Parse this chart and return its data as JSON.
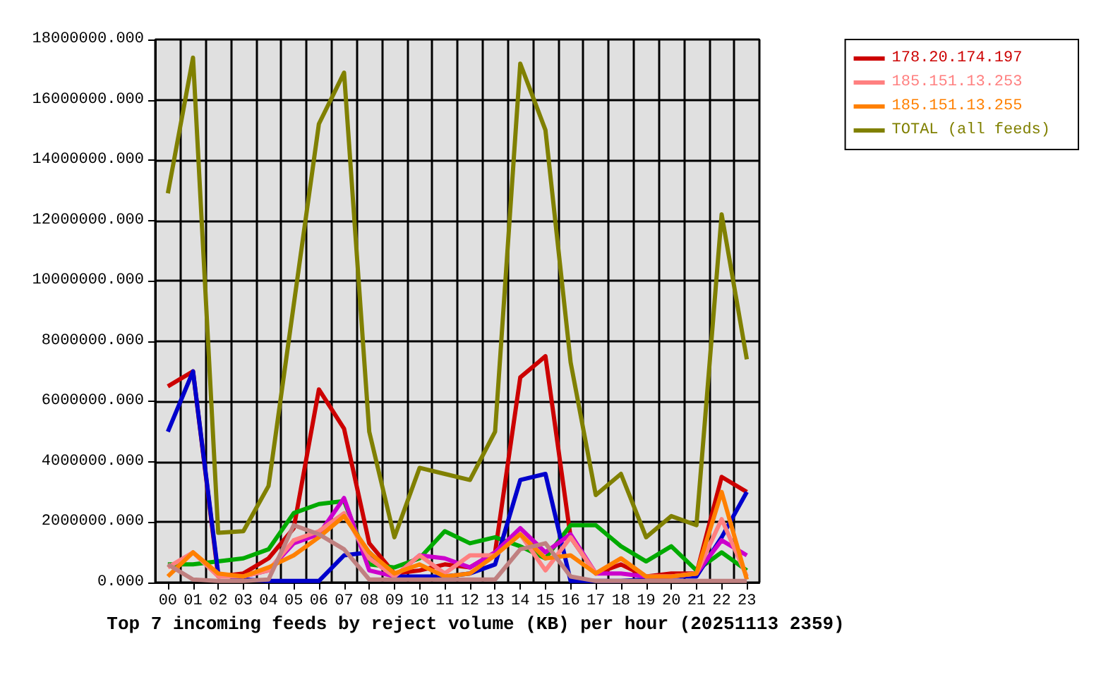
{
  "chart_data": {
    "type": "line",
    "title": "Top 7 incoming feeds by reject volume (KB) per hour (20251113 2359)",
    "categories": [
      "00",
      "01",
      "02",
      "03",
      "04",
      "05",
      "06",
      "07",
      "08",
      "09",
      "10",
      "11",
      "12",
      "13",
      "14",
      "15",
      "16",
      "17",
      "18",
      "19",
      "20",
      "21",
      "22",
      "23"
    ],
    "series": [
      {
        "name": "178.20.174.197",
        "color": "#cc0000",
        "values": [
          6500000,
          7000000,
          200000,
          300000,
          800000,
          1800000,
          6400000,
          5100000,
          1300000,
          300000,
          400000,
          600000,
          500000,
          1000000,
          6800000,
          7500000,
          1500000,
          300000,
          600000,
          200000,
          300000,
          300000,
          3500000,
          3000000
        ]
      },
      {
        "color": "#00aa00",
        "values": [
          600000,
          600000,
          700000,
          800000,
          1100000,
          2300000,
          2600000,
          2700000,
          600000,
          500000,
          800000,
          1700000,
          1300000,
          1500000,
          1200000,
          800000,
          1900000,
          1900000,
          1200000,
          700000,
          1200000,
          400000,
          1000000,
          400000
        ]
      },
      {
        "color": "#0000cc",
        "values": [
          5000000,
          7000000,
          300000,
          100000,
          50000,
          50000,
          50000,
          900000,
          1000000,
          200000,
          200000,
          200000,
          300000,
          600000,
          3400000,
          3600000,
          50000,
          50000,
          50000,
          100000,
          200000,
          200000,
          1500000,
          3000000
        ]
      },
      {
        "color": "#cc00cc",
        "values": [
          null,
          null,
          null,
          200000,
          400000,
          1300000,
          1600000,
          2800000,
          400000,
          200000,
          900000,
          800000,
          500000,
          1000000,
          1800000,
          1000000,
          1600000,
          300000,
          300000,
          200000,
          200000,
          300000,
          1400000,
          900000
        ]
      },
      {
        "name": "185.151.13.253",
        "color": "#ff8080",
        "values": [
          500000,
          1000000,
          200000,
          200000,
          400000,
          1400000,
          1700000,
          2300000,
          800000,
          200000,
          900000,
          300000,
          900000,
          900000,
          1600000,
          400000,
          1500000,
          300000,
          800000,
          200000,
          200000,
          300000,
          2100000,
          200000
        ]
      },
      {
        "name": "185.151.13.255",
        "color": "#ff8000",
        "values": [
          200000,
          1000000,
          300000,
          200000,
          500000,
          900000,
          1500000,
          2200000,
          1000000,
          300000,
          600000,
          200000,
          300000,
          900000,
          1600000,
          800000,
          900000,
          300000,
          800000,
          200000,
          200000,
          300000,
          3000000,
          100000
        ]
      },
      {
        "color": "#c08080",
        "values": [
          600000,
          100000,
          50000,
          50000,
          100000,
          1900000,
          1600000,
          1100000,
          100000,
          100000,
          100000,
          100000,
          100000,
          100000,
          1100000,
          1300000,
          200000,
          50000,
          50000,
          50000,
          50000,
          50000,
          50000,
          50000
        ]
      },
      {
        "name": "TOTAL (all feeds)",
        "color": "#808000",
        "values": [
          12900000,
          17400000,
          1650000,
          1700000,
          3200000,
          9200000,
          15200000,
          16900000,
          5000000,
          1500000,
          3800000,
          3600000,
          3400000,
          5000000,
          17200000,
          15000000,
          7300000,
          2900000,
          3600000,
          1500000,
          2200000,
          1900000,
          12200000,
          7400000
        ]
      }
    ],
    "ylim": [
      0,
      18000000
    ],
    "yticks": [
      {
        "value": 0,
        "label": "0.000"
      },
      {
        "value": 2000000,
        "label": "2000000.000"
      },
      {
        "value": 4000000,
        "label": "4000000.000"
      },
      {
        "value": 6000000,
        "label": "6000000.000"
      },
      {
        "value": 8000000,
        "label": "8000000.000"
      },
      {
        "value": 10000000,
        "label": "10000000.000"
      },
      {
        "value": 12000000,
        "label": "12000000.000"
      },
      {
        "value": 14000000,
        "label": "14000000.000"
      },
      {
        "value": 16000000,
        "label": "16000000.000"
      },
      {
        "value": 18000000,
        "label": "18000000.000"
      }
    ],
    "grid": true,
    "legend": "top right"
  }
}
